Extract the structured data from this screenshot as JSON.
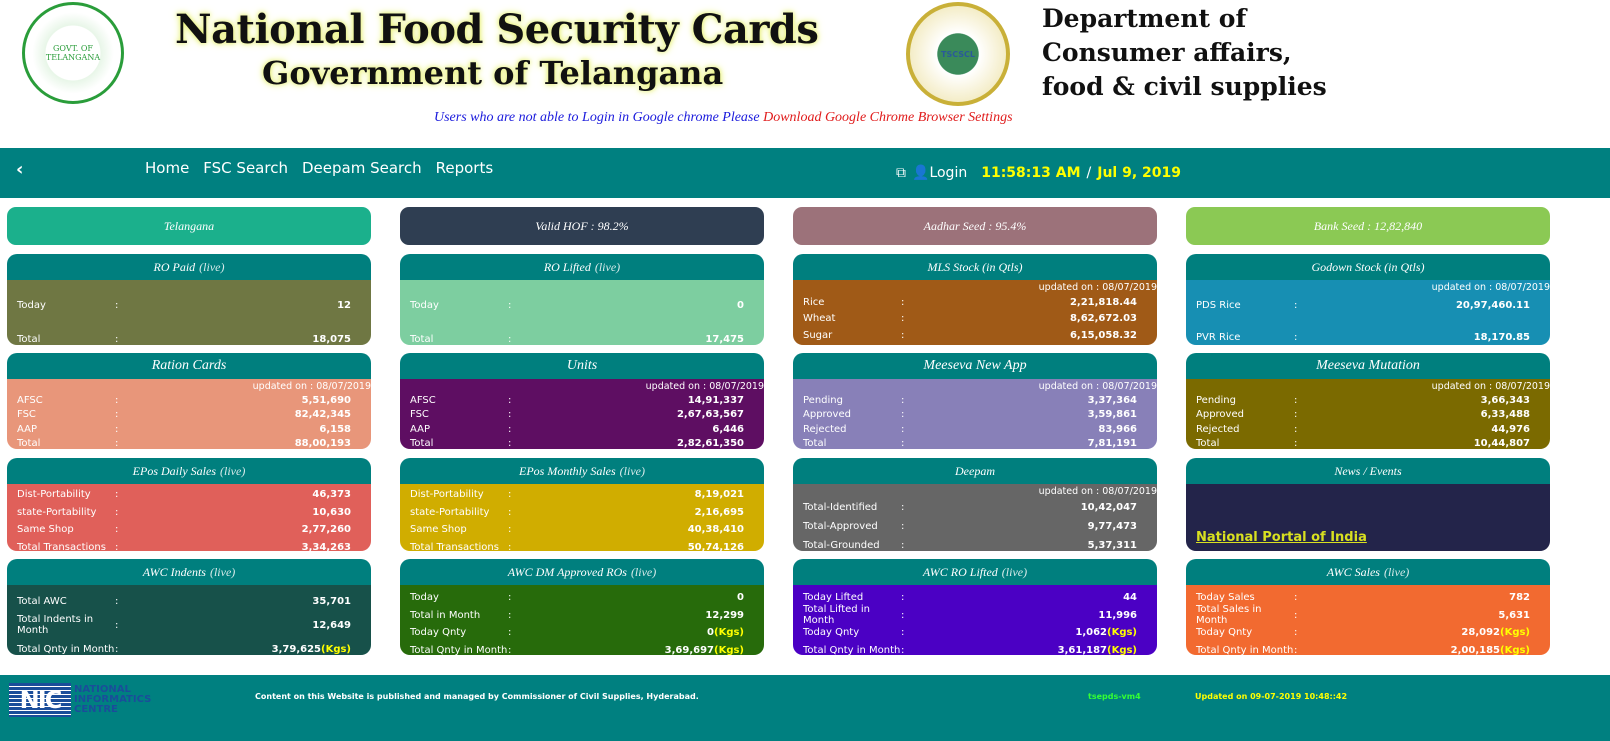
{
  "header": {
    "title": "National Food Security Cards",
    "subtitle": "Government of Telangana",
    "dept_lines": [
      "Department of",
      "Consumer affairs,",
      "food & civil supplies"
    ],
    "logo_left_text": "GOVERNMENT OF TELANGANA",
    "logo_right_text": "TSCSCL",
    "notice": "Users who are not able to Login in Google chrome Please ",
    "notice_link": "Download Google Chrome Browser Settings"
  },
  "nav": {
    "back_icon": "chevron-left-icon",
    "back_glyph": "‹",
    "items": [
      "Home",
      "FSC Search",
      "Deepam Search",
      "Reports"
    ],
    "login": "Login",
    "time": "11:58:13 AM",
    "sep": "/",
    "date": "Jul 9, 2019"
  },
  "banners": [
    {
      "text": "Telangana",
      "color": "#1bb08c"
    },
    {
      "text": "Valid HOF : 98.2%",
      "color": "#2f3e52"
    },
    {
      "text": "Aadhar Seed : 95.4%",
      "color": "#9c727a"
    },
    {
      "text": "Bank Seed : 12,82,840",
      "color": "#8bc954"
    }
  ],
  "rows": [
    [
      {
        "title": "RO Paid",
        "live": "(live)",
        "color": "#6f7743",
        "rows": [
          [
            "Today",
            "12"
          ],
          [
            "Total",
            "18,075"
          ]
        ]
      },
      {
        "title": "RO Lifted",
        "live": "(live)",
        "color": "#7dcea0",
        "rows": [
          [
            "Today",
            "0"
          ],
          [
            "Total",
            "17,475"
          ]
        ]
      },
      {
        "title": "MLS Stock (in Qtls)",
        "color": "#a05a17",
        "updated": "updated on : 08/07/2019",
        "rows": [
          [
            "Rice",
            "2,21,818.44"
          ],
          [
            "Wheat",
            "8,62,672.03"
          ],
          [
            "Sugar",
            "6,15,058.32"
          ]
        ]
      },
      {
        "title": "Godown Stock (in Qtls)",
        "color": "#178fb3",
        "updated": "updated on : 08/07/2019",
        "rows": [
          [
            "PDS Rice",
            "20,97,460.11"
          ],
          [
            "PVR Rice",
            "18,170.85"
          ]
        ]
      }
    ],
    [
      {
        "title": "Ration Cards",
        "big": true,
        "color": "#e8967a",
        "updated": "updated on : 08/07/2019",
        "rows": [
          [
            "AFSC",
            "5,51,690"
          ],
          [
            "FSC",
            "82,42,345"
          ],
          [
            "AAP",
            "6,158"
          ],
          [
            "Total",
            "88,00,193"
          ]
        ]
      },
      {
        "title": "Units",
        "big": true,
        "color": "#5e0e62",
        "updated": "updated on : 08/07/2019",
        "rows": [
          [
            "AFSC",
            "14,91,337"
          ],
          [
            "FSC",
            "2,67,63,567"
          ],
          [
            "AAP",
            "6,446"
          ],
          [
            "Total",
            "2,82,61,350"
          ]
        ]
      },
      {
        "title": "Meeseva New App",
        "big": true,
        "color": "#8880b8",
        "updated": "updated on : 08/07/2019",
        "rows": [
          [
            "Pending",
            "3,37,364"
          ],
          [
            "Approved",
            "3,59,861"
          ],
          [
            "Rejected",
            "83,966"
          ],
          [
            "Total",
            "7,81,191"
          ]
        ]
      },
      {
        "title": "Meeseva Mutation",
        "big": true,
        "color": "#7b6a00",
        "updated": "updated on : 08/07/2019",
        "rows": [
          [
            "Pending",
            "3,66,343"
          ],
          [
            "Approved",
            "6,33,488"
          ],
          [
            "Rejected",
            "44,976"
          ],
          [
            "Total",
            "10,44,807"
          ]
        ]
      }
    ],
    [
      {
        "title": "EPos Daily Sales",
        "live": "(live)",
        "color": "#e0605a",
        "rows": [
          [
            "Dist-Portability",
            "46,373"
          ],
          [
            "state-Portability",
            "10,630"
          ],
          [
            "Same Shop",
            "2,77,260"
          ],
          [
            "Total Transactions",
            "3,34,263"
          ]
        ]
      },
      {
        "title": "EPos Monthly Sales",
        "live": "(live)",
        "color": "#d0ad00",
        "rows": [
          [
            "Dist-Portability",
            "8,19,021"
          ],
          [
            "state-Portability",
            "2,16,695"
          ],
          [
            "Same Shop",
            "40,38,410"
          ],
          [
            "Total Transactions",
            "50,74,126"
          ]
        ]
      },
      {
        "title": "Deepam",
        "color": "#666666",
        "updated": "updated on : 08/07/2019",
        "rows": [
          [
            "Total-Identified",
            "10,42,047"
          ],
          [
            "Total-Approved",
            "9,77,473"
          ],
          [
            "Total-Grounded",
            "5,37,311"
          ]
        ]
      },
      {
        "title": "News / Events",
        "color": "#23244a",
        "news": "National Portal of India"
      }
    ],
    [
      {
        "title": "AWC Indents",
        "live": "(live)",
        "color": "#17514a",
        "rows": [
          [
            "Total AWC",
            "35,701"
          ],
          [
            "Total Indents in Month",
            "12,649"
          ],
          [
            "Total Qnty in Month",
            "3,79,625",
            "(Kgs)"
          ]
        ]
      },
      {
        "title": "AWC DM Approved ROs",
        "live": "(live)",
        "color": "#276b0b",
        "rows": [
          [
            "Today",
            "0"
          ],
          [
            "Total in Month",
            "12,299"
          ],
          [
            "Today Qnty",
            "0",
            "(Kgs)"
          ],
          [
            "Total Qnty in Month",
            "3,69,697",
            "(Kgs)"
          ]
        ]
      },
      {
        "title": "AWC RO Lifted",
        "live": "(live)",
        "color": "#4b00c4",
        "rows": [
          [
            "Today Lifted",
            "44"
          ],
          [
            "Total Lifted in Month",
            "11,996"
          ],
          [
            "Today Qnty",
            "1,062",
            "(Kgs)"
          ],
          [
            "Total Qnty in Month",
            "3,61,187",
            "(Kgs)"
          ]
        ]
      },
      {
        "title": "AWC Sales",
        "live": "(live)",
        "color": "#f26a30",
        "rows": [
          [
            "Today Sales",
            "782"
          ],
          [
            "Total Sales in Month",
            "5,631"
          ],
          [
            "Today Qnty",
            "28,092",
            "(Kgs)"
          ],
          [
            "Total Qnty in Month",
            "2,00,185",
            "(Kgs)"
          ]
        ]
      }
    ]
  ],
  "footer": {
    "nic_logo": "NIC",
    "nic_name": [
      "NATIONAL",
      "INFORMATICS",
      "CENTRE"
    ],
    "content": "Content on this Website is published and managed by Commissioner of Civil Supplies, Hyderabad.",
    "server": "tsepds-vm4",
    "updated": "Updated on 09-07-2019 10:48::42",
    "server_color": "#33ff33",
    "updated_color": "#ffff00"
  }
}
